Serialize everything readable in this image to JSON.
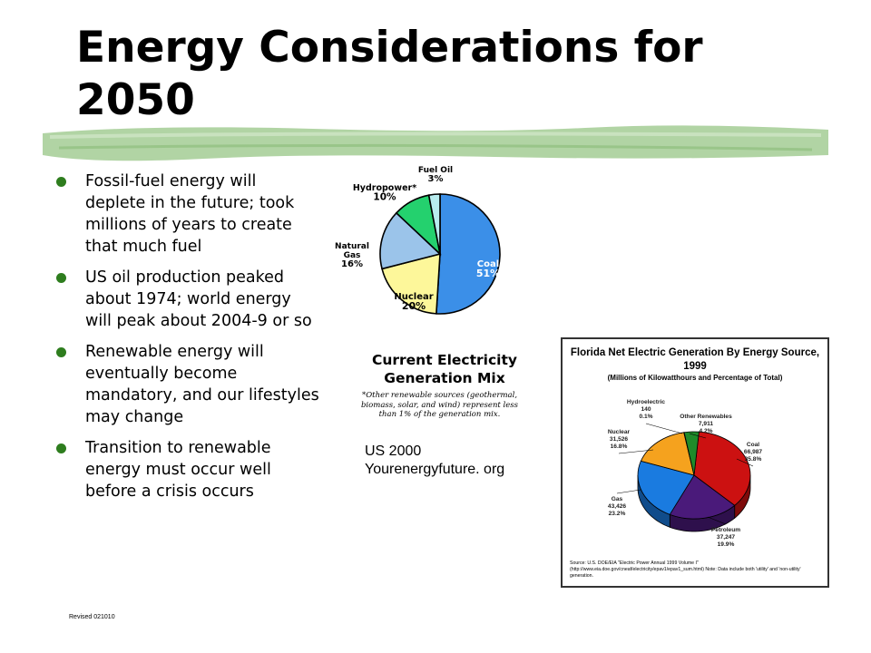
{
  "slide": {
    "title": "Energy Considerations for 2050",
    "bullets": [
      "Fossil-fuel energy will deplete in the future; took millions of years to create that much fuel",
      "US oil production peaked about 1974; world energy will peak about 2004-9 or so",
      "Renewable energy will eventually become mandatory, and our lifestyles may change",
      "Transition to renewable energy must occur well before a crisis occurs"
    ],
    "us_caption": "US 2000 Yourenergyfuture. org",
    "revised": "Revised 021010"
  },
  "colors": {
    "bullet": "#2e7d1e",
    "brush": "#a8cf9a"
  },
  "chart_data": [
    {
      "type": "pie",
      "title": "Current Electricity Generation Mix",
      "note": "*Other renewable sources (geothermal, biomass, solar, and wind) represent less than 1% of the generation mix.",
      "slices": [
        {
          "label": "Coal",
          "value_label": "51%",
          "value": 51,
          "color": "#3b8fe8"
        },
        {
          "label": "Nuclear",
          "value_label": "20%",
          "value": 20,
          "color": "#fdf79a"
        },
        {
          "label": "Natural Gas",
          "value_label": "16%",
          "value": 16,
          "color": "#9bc4ea"
        },
        {
          "label": "Hydropower*",
          "value_label": "10%",
          "value": 10,
          "color": "#24d16e"
        },
        {
          "label": "Fuel Oil",
          "value_label": "3%",
          "value": 3,
          "color": "#b8ecef"
        }
      ]
    },
    {
      "type": "pie",
      "title": "Florida Net Electric Generation By Energy Source, 1999",
      "subtitle": "(Millions of Kilowatthours and Percentage of Total)",
      "source": "Source: U.S. DOE/EIA \"Electric Power Annual 1999 Volume I\" (http://www.eia.doe.gov/cneaf/electricity/epav1/epav1_sum.html) Note: Data include both 'utility' and 'non-utility' generation.",
      "slices": [
        {
          "label": "Coal",
          "amount": "66,987",
          "pct": "35.8%",
          "value": 35.8,
          "color": "#cc1111"
        },
        {
          "label": "Petroleum",
          "amount": "37,247",
          "pct": "19.9%",
          "value": 19.9,
          "color": "#4a1a7a"
        },
        {
          "label": "Gas",
          "amount": "43,426",
          "pct": "23.2%",
          "value": 23.2,
          "color": "#1a7be0"
        },
        {
          "label": "Nuclear",
          "amount": "31,526",
          "pct": "16.8%",
          "value": 16.8,
          "color": "#f5a21e"
        },
        {
          "label": "Hydroelectric",
          "amount": "140",
          "pct": "0.1%",
          "value": 0.1,
          "color": "#2e9a6e"
        },
        {
          "label": "Other Renewables",
          "amount": "7,911",
          "pct": "4.2%",
          "value": 4.2,
          "color": "#1f8a2a"
        }
      ]
    }
  ]
}
